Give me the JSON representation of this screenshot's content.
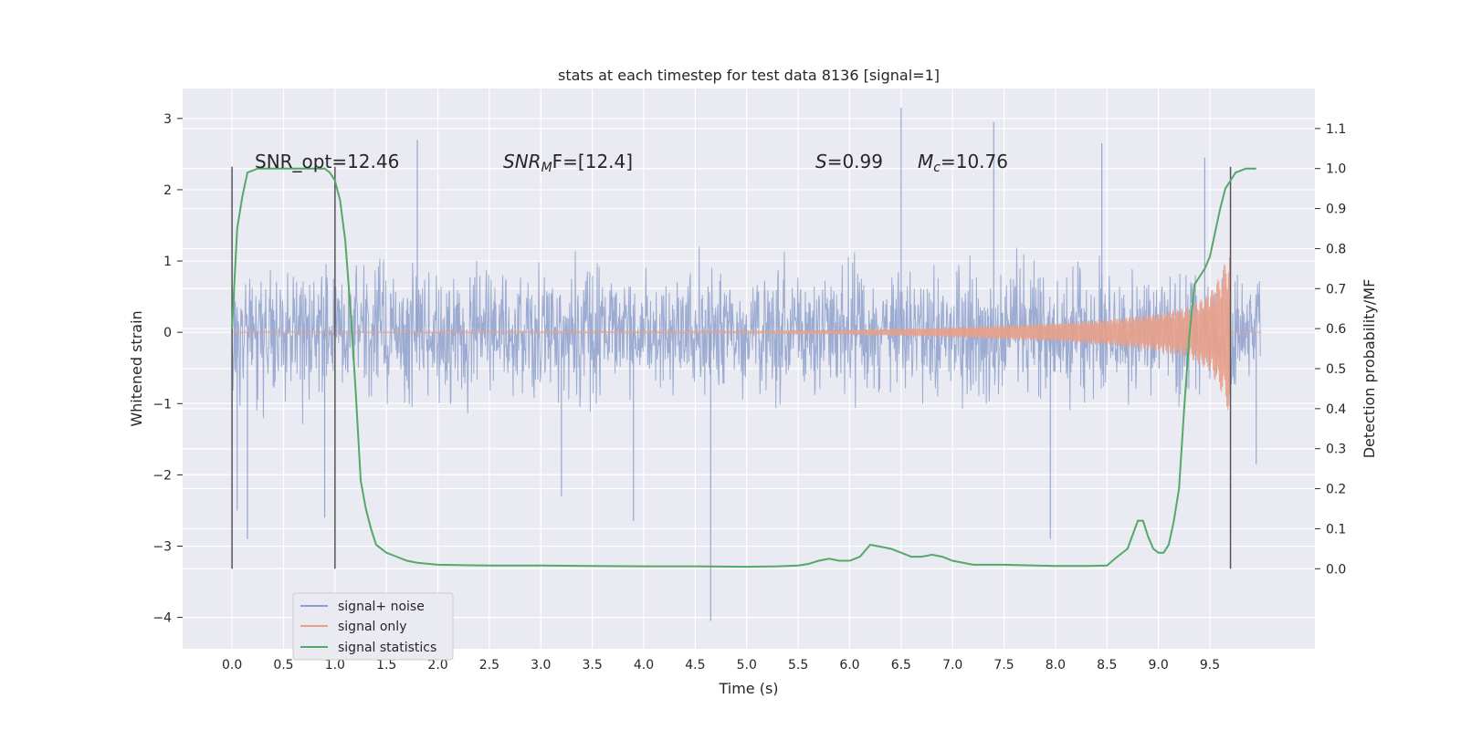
{
  "chart_data": {
    "type": "line",
    "title": "stats at each timestep for test data 8136 [signal=1]",
    "xlabel": "Time (s)",
    "ylabel": "Whitened strain",
    "y2label": "Detection probability/MF",
    "xlim": [
      -0.48,
      10.52
    ],
    "ylim": [
      -4.44,
      3.42
    ],
    "y2lim": [
      -0.2,
      1.2
    ],
    "xticks": [
      "0.0",
      "0.5",
      "1.0",
      "1.5",
      "2.0",
      "2.5",
      "3.0",
      "3.5",
      "4.0",
      "4.5",
      "5.0",
      "5.5",
      "6.0",
      "6.5",
      "7.0",
      "7.5",
      "8.0",
      "8.5",
      "9.0",
      "9.5"
    ],
    "yticks": [
      "3",
      "2",
      "1",
      "0",
      "−1",
      "−2",
      "−3",
      "−4"
    ],
    "y2ticks": [
      "1.1",
      "1.0",
      "0.9",
      "0.8",
      "0.7",
      "0.6",
      "0.5",
      "0.4",
      "0.3",
      "0.2",
      "0.1",
      "0.0"
    ],
    "grid": true,
    "legend_position": "lower-left",
    "vlines_x": [
      0.0,
      1.0,
      9.7
    ],
    "annotations": {
      "snr_opt": "SNR_opt=12.46",
      "snr_mf_prefix": "SNR",
      "snr_mf_sub": "M",
      "snr_mf_suffix": "F=[12.4]",
      "s_label": "S",
      "s_value": "=0.99",
      "mc_label": "M",
      "mc_sub": "c",
      "mc_value": "=10.76"
    },
    "series": [
      {
        "name": "signal+ noise",
        "color": "#8da0cb",
        "x_range": [
          0.0,
          9.99
        ],
        "typical_range": [
          -1.2,
          1.3
        ],
        "extreme_points": [
          {
            "x": 0.05,
            "y": -2.5
          },
          {
            "x": 0.15,
            "y": -2.9
          },
          {
            "x": 0.9,
            "y": -2.6
          },
          {
            "x": 1.8,
            "y": 2.7
          },
          {
            "x": 3.2,
            "y": -2.3
          },
          {
            "x": 3.9,
            "y": -2.65
          },
          {
            "x": 4.65,
            "y": -4.05
          },
          {
            "x": 6.5,
            "y": 3.15
          },
          {
            "x": 7.4,
            "y": 2.95
          },
          {
            "x": 7.95,
            "y": -2.9
          },
          {
            "x": 8.45,
            "y": 2.65
          },
          {
            "x": 9.45,
            "y": 2.45
          },
          {
            "x": 9.95,
            "y": -1.85
          }
        ]
      },
      {
        "name": "signal only",
        "color": "#e8a08a",
        "x_range": [
          0.0,
          10.0
        ],
        "envelope": {
          "x": [
            0.0,
            5.0,
            6.0,
            7.0,
            8.0,
            8.5,
            9.0,
            9.3,
            9.5,
            9.6,
            9.7
          ],
          "amplitude": [
            0.005,
            0.01,
            0.03,
            0.07,
            0.13,
            0.18,
            0.27,
            0.36,
            0.55,
            0.8,
            1.2
          ]
        }
      },
      {
        "name": "signal statistics",
        "color": "#55a868",
        "x": [
          0.0,
          0.05,
          0.1,
          0.15,
          0.25,
          0.4,
          0.6,
          0.8,
          0.9,
          0.95,
          1.0,
          1.05,
          1.1,
          1.15,
          1.2,
          1.25,
          1.3,
          1.35,
          1.4,
          1.5,
          1.6,
          1.7,
          1.8,
          2.0,
          2.5,
          3.0,
          3.5,
          4.0,
          4.5,
          5.0,
          5.3,
          5.5,
          5.6,
          5.7,
          5.8,
          5.9,
          6.0,
          6.1,
          6.2,
          6.3,
          6.4,
          6.5,
          6.6,
          6.7,
          6.8,
          6.9,
          7.0,
          7.2,
          7.5,
          8.0,
          8.3,
          8.5,
          8.6,
          8.7,
          8.8,
          8.85,
          8.9,
          8.95,
          9.0,
          9.05,
          9.1,
          9.15,
          9.2,
          9.25,
          9.3,
          9.35,
          9.4,
          9.45,
          9.5,
          9.55,
          9.6,
          9.65,
          9.7,
          9.75,
          9.8,
          9.85,
          9.9,
          9.95
        ],
        "y": [
          0.6,
          0.85,
          0.93,
          0.99,
          1.0,
          1.0,
          1.0,
          1.0,
          1.0,
          0.99,
          0.97,
          0.92,
          0.82,
          0.65,
          0.45,
          0.22,
          0.15,
          0.1,
          0.06,
          0.04,
          0.03,
          0.02,
          0.015,
          0.01,
          0.008,
          0.008,
          0.007,
          0.006,
          0.006,
          0.005,
          0.006,
          0.008,
          0.012,
          0.02,
          0.025,
          0.02,
          0.02,
          0.03,
          0.06,
          0.055,
          0.05,
          0.04,
          0.03,
          0.03,
          0.035,
          0.03,
          0.02,
          0.01,
          0.01,
          0.007,
          0.007,
          0.008,
          0.03,
          0.05,
          0.12,
          0.12,
          0.08,
          0.05,
          0.04,
          0.04,
          0.06,
          0.12,
          0.2,
          0.4,
          0.58,
          0.71,
          0.73,
          0.75,
          0.78,
          0.84,
          0.9,
          0.95,
          0.97,
          0.99,
          0.995,
          1.0,
          1.0,
          1.0
        ]
      }
    ]
  }
}
